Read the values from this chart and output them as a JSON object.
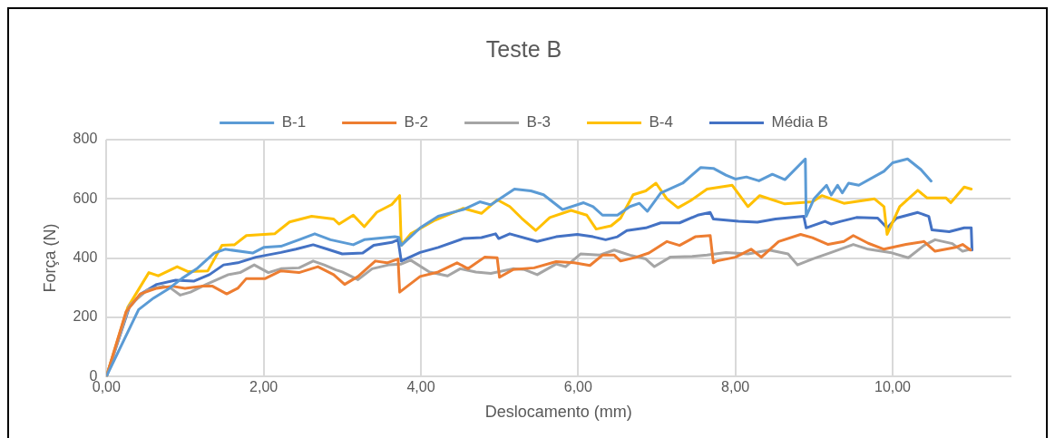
{
  "chart_data": {
    "type": "line",
    "title": "Teste B",
    "xlabel": "Deslocamento (mm)",
    "ylabel": "Força (N)",
    "xlim": [
      0,
      11.5
    ],
    "xticks": [
      {
        "value": 0,
        "label": "0,00"
      },
      {
        "value": 2,
        "label": "2,00"
      },
      {
        "value": 4,
        "label": "4,00"
      },
      {
        "value": 6,
        "label": "6,00"
      },
      {
        "value": 8,
        "label": "8,00"
      },
      {
        "value": 10,
        "label": "10,00"
      }
    ],
    "ylim": [
      0,
      800
    ],
    "yticks": [
      0,
      200,
      400,
      600,
      800
    ],
    "grid": true,
    "legend": "top",
    "marker": "none",
    "line_style": "solid",
    "series": [
      {
        "name": "B-1",
        "color": "#5b9bd5",
        "x": [
          0,
          0.41,
          0.6,
          0.8,
          0.96,
          1.15,
          1.37,
          1.51,
          1.86,
          2.0,
          2.22,
          2.45,
          2.65,
          2.85,
          3.14,
          3.28,
          3.67,
          3.72,
          3.75,
          3.99,
          4.22,
          4.54,
          4.75,
          4.89,
          5.19,
          5.4,
          5.56,
          5.8,
          6.07,
          6.19,
          6.31,
          6.5,
          6.66,
          6.78,
          6.88,
          7.05,
          7.33,
          7.56,
          7.72,
          7.88,
          8.0,
          8.14,
          8.3,
          8.47,
          8.63,
          8.89,
          8.9,
          9.0,
          9.16,
          9.22,
          9.3,
          9.36,
          9.44,
          9.57,
          9.89,
          10.0,
          10.19,
          10.36,
          10.49
        ],
        "values": [
          0,
          226,
          265,
          298,
          331,
          364,
          417,
          430,
          417,
          436,
          440,
          462,
          482,
          462,
          445,
          462,
          472,
          470,
          443,
          502,
          541,
          564,
          590,
          580,
          633,
          627,
          614,
          564,
          587,
          574,
          545,
          545,
          574,
          585,
          558,
          620,
          653,
          706,
          703,
          680,
          667,
          674,
          661,
          683,
          665,
          735,
          541,
          600,
          646,
          613,
          646,
          620,
          653,
          646,
          693,
          722,
          735,
          699,
          660
        ]
      },
      {
        "name": "B-2",
        "color": "#ed7d31",
        "x": [
          0,
          0.25,
          0.43,
          0.64,
          0.84,
          1.0,
          1.21,
          1.35,
          1.53,
          1.67,
          1.78,
          2.02,
          2.22,
          2.45,
          2.69,
          2.89,
          3.03,
          3.2,
          3.42,
          3.57,
          3.71,
          3.73,
          3.99,
          4.22,
          4.46,
          4.6,
          4.81,
          4.97,
          5.0,
          5.17,
          5.44,
          5.72,
          5.95,
          6.15,
          6.31,
          6.46,
          6.54,
          6.74,
          6.9,
          7.13,
          7.29,
          7.49,
          7.68,
          7.72,
          7.76,
          8.0,
          8.2,
          8.33,
          8.55,
          8.83,
          8.98,
          9.18,
          9.38,
          9.5,
          9.69,
          9.89,
          10.17,
          10.4,
          10.54,
          10.8,
          10.89,
          10.99
        ],
        "values": [
          0,
          219,
          279,
          298,
          305,
          298,
          305,
          305,
          279,
          298,
          331,
          331,
          357,
          351,
          371,
          344,
          311,
          338,
          390,
          384,
          397,
          285,
          338,
          353,
          384,
          364,
          403,
          401,
          335,
          361,
          367,
          388,
          384,
          375,
          410,
          410,
          390,
          403,
          417,
          456,
          443,
          472,
          476,
          384,
          390,
          403,
          430,
          403,
          456,
          480,
          469,
          446,
          456,
          476,
          450,
          430,
          446,
          456,
          423,
          436,
          446,
          427
        ]
      },
      {
        "name": "B-3",
        "color": "#a5a5a5",
        "x": [
          0,
          0.29,
          0.52,
          0.72,
          0.82,
          0.94,
          1.07,
          1.27,
          1.55,
          1.7,
          1.88,
          2.06,
          2.22,
          2.45,
          2.63,
          2.77,
          2.92,
          3.0,
          3.2,
          3.38,
          3.59,
          3.75,
          3.87,
          4.11,
          4.34,
          4.5,
          4.7,
          4.89,
          5.17,
          5.32,
          5.48,
          5.72,
          5.84,
          6.03,
          6.27,
          6.46,
          6.66,
          6.86,
          6.97,
          7.17,
          7.45,
          7.64,
          7.88,
          8.16,
          8.43,
          8.67,
          8.79,
          8.98,
          9.22,
          9.5,
          9.69,
          9.97,
          10.2,
          10.4,
          10.54,
          10.76,
          10.89,
          10.99
        ],
        "values": [
          0,
          239,
          292,
          305,
          298,
          275,
          285,
          311,
          344,
          351,
          377,
          351,
          364,
          367,
          390,
          377,
          360,
          353,
          327,
          364,
          377,
          380,
          393,
          353,
          340,
          364,
          353,
          348,
          364,
          361,
          344,
          380,
          371,
          414,
          410,
          427,
          410,
          397,
          371,
          403,
          406,
          410,
          419,
          414,
          427,
          414,
          377,
          397,
          419,
          446,
          430,
          419,
          401,
          443,
          462,
          449,
          423,
          430
        ]
      },
      {
        "name": "B-4",
        "color": "#ffc000",
        "x": [
          0,
          0.27,
          0.54,
          0.66,
          0.9,
          1.04,
          1.29,
          1.47,
          1.63,
          1.78,
          2.14,
          2.33,
          2.61,
          2.89,
          2.96,
          3.14,
          3.28,
          3.44,
          3.63,
          3.73,
          3.75,
          3.87,
          4.18,
          4.54,
          4.77,
          4.97,
          5.13,
          5.28,
          5.46,
          5.64,
          5.91,
          6.11,
          6.23,
          6.42,
          6.54,
          6.7,
          6.86,
          6.99,
          7.13,
          7.27,
          7.43,
          7.64,
          7.96,
          8.16,
          8.31,
          8.63,
          8.98,
          9.1,
          9.38,
          9.77,
          9.89,
          9.93,
          10.09,
          10.32,
          10.44,
          10.68,
          10.74,
          10.91,
          11.0
        ],
        "values": [
          0,
          233,
          351,
          340,
          371,
          354,
          357,
          443,
          445,
          476,
          482,
          522,
          541,
          532,
          515,
          545,
          506,
          555,
          581,
          611,
          443,
          482,
          528,
          568,
          551,
          597,
          574,
          535,
          493,
          537,
          561,
          545,
          498,
          509,
          535,
          614,
          627,
          653,
          600,
          570,
          594,
          633,
          646,
          574,
          611,
          583,
          590,
          611,
          585,
          600,
          574,
          480,
          574,
          629,
          603,
          603,
          587,
          640,
          633
        ]
      },
      {
        "name": "Média B",
        "color": "#4472c4",
        "x": [
          0,
          0.29,
          0.44,
          0.64,
          0.88,
          1.11,
          1.31,
          1.49,
          1.67,
          1.9,
          2.22,
          2.41,
          2.63,
          2.81,
          3.0,
          3.26,
          3.4,
          3.63,
          3.71,
          3.75,
          3.99,
          4.22,
          4.54,
          4.77,
          4.95,
          4.99,
          5.13,
          5.48,
          5.72,
          5.99,
          6.19,
          6.35,
          6.5,
          6.62,
          6.86,
          7.05,
          7.29,
          7.52,
          7.68,
          7.72,
          8.04,
          8.28,
          8.51,
          8.87,
          8.9,
          9.14,
          9.22,
          9.34,
          9.54,
          9.81,
          9.93,
          10.05,
          10.32,
          10.46,
          10.5,
          10.72,
          10.91,
          11.0,
          11.01
        ],
        "values": [
          0,
          233,
          279,
          311,
          325,
          322,
          344,
          377,
          384,
          403,
          419,
          430,
          445,
          430,
          414,
          417,
          443,
          453,
          462,
          390,
          419,
          436,
          466,
          469,
          482,
          466,
          482,
          456,
          472,
          480,
          472,
          462,
          472,
          493,
          502,
          519,
          519,
          545,
          554,
          532,
          524,
          521,
          532,
          541,
          502,
          524,
          515,
          524,
          537,
          535,
          502,
          535,
          554,
          541,
          495,
          489,
          502,
          502,
          427
        ]
      }
    ]
  }
}
